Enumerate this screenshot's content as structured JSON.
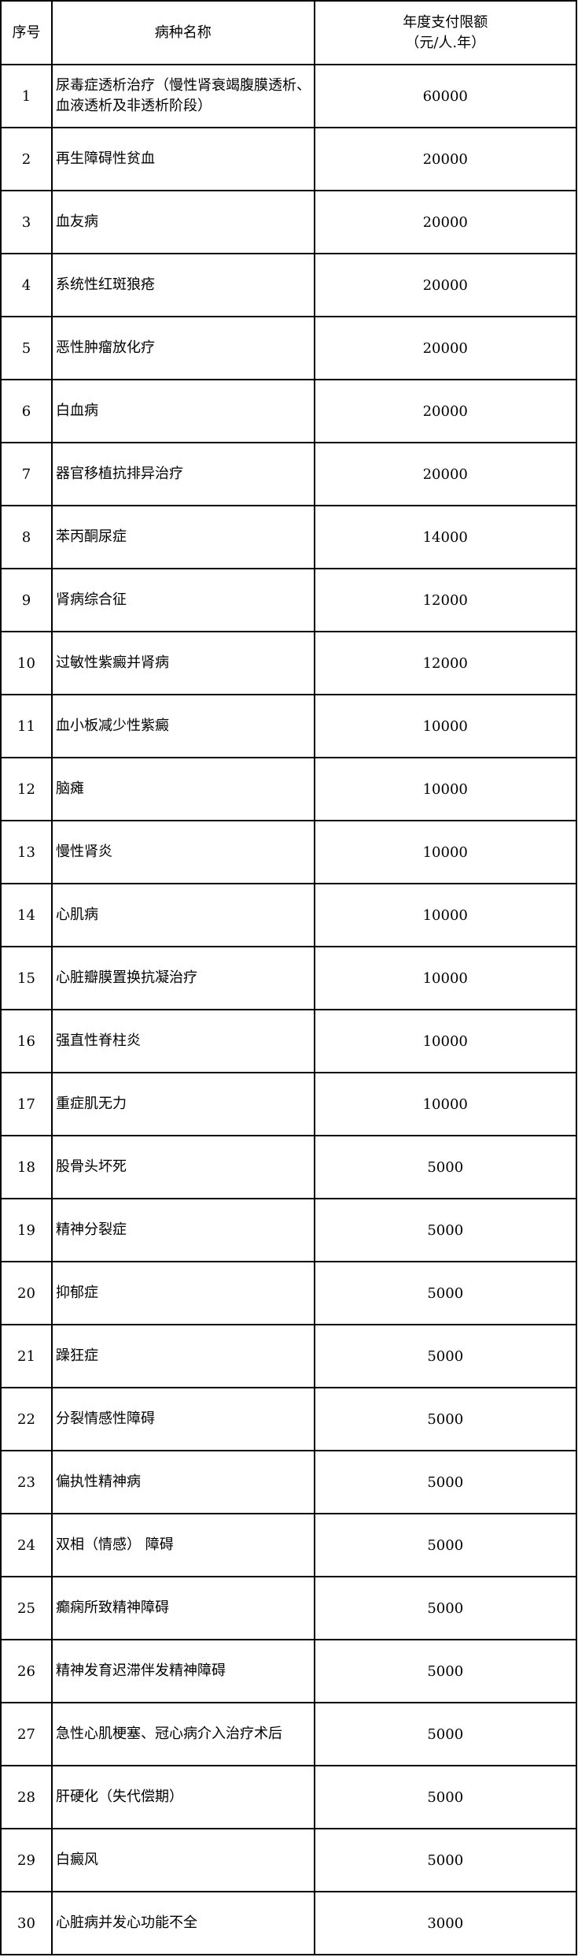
{
  "header": {
    "index": "序号",
    "disease_name": "病种名称",
    "limit_line1": "年度支付限额",
    "limit_line2": "（元/人.年）"
  },
  "rows": [
    {
      "no": "1",
      "name": "尿毒症透析治疗（慢性肾衰竭腹膜透析、血液透析及非透析阶段）",
      "limit": "60000"
    },
    {
      "no": "2",
      "name": "再生障碍性贫血",
      "limit": "20000"
    },
    {
      "no": "3",
      "name": "血友病",
      "limit": "20000"
    },
    {
      "no": "4",
      "name": "系统性红斑狼疮",
      "limit": "20000"
    },
    {
      "no": "5",
      "name": "恶性肿瘤放化疗",
      "limit": "20000"
    },
    {
      "no": "6",
      "name": "白血病",
      "limit": "20000"
    },
    {
      "no": "7",
      "name": "器官移植抗排异治疗",
      "limit": "20000"
    },
    {
      "no": "8",
      "name": "苯丙酮尿症",
      "limit": "14000"
    },
    {
      "no": "9",
      "name": "肾病综合征",
      "limit": "12000"
    },
    {
      "no": "10",
      "name": "过敏性紫癜并肾病",
      "limit": "12000"
    },
    {
      "no": "11",
      "name": "血小板减少性紫癜",
      "limit": "10000"
    },
    {
      "no": "12",
      "name": "脑瘫",
      "limit": "10000"
    },
    {
      "no": "13",
      "name": "慢性肾炎",
      "limit": "10000"
    },
    {
      "no": "14",
      "name": "心肌病",
      "limit": "10000"
    },
    {
      "no": "15",
      "name": "心脏瓣膜置换抗凝治疗",
      "limit": "10000"
    },
    {
      "no": "16",
      "name": "强直性脊柱炎",
      "limit": "10000"
    },
    {
      "no": "17",
      "name": "重症肌无力",
      "limit": "10000"
    },
    {
      "no": "18",
      "name": "股骨头坏死",
      "limit": "5000"
    },
    {
      "no": "19",
      "name": "精神分裂症",
      "limit": "5000"
    },
    {
      "no": "20",
      "name": "抑郁症",
      "limit": "5000"
    },
    {
      "no": "21",
      "name": "躁狂症",
      "limit": "5000"
    },
    {
      "no": "22",
      "name": "分裂情感性障碍",
      "limit": "5000"
    },
    {
      "no": "23",
      "name": "偏执性精神病",
      "limit": "5000"
    },
    {
      "no": "24",
      "name": "双相（情感） 障碍",
      "limit": "5000"
    },
    {
      "no": "25",
      "name": "癫痫所致精神障碍",
      "limit": "5000"
    },
    {
      "no": "26",
      "name": "精神发育迟滞伴发精神障碍",
      "limit": "5000"
    },
    {
      "no": "27",
      "name": "急性心肌梗塞、冠心病介入治疗术后",
      "limit": "5000"
    },
    {
      "no": "28",
      "name": "肝硬化（失代偿期）",
      "limit": "5000"
    },
    {
      "no": "29",
      "name": "白癜风",
      "limit": "5000"
    },
    {
      "no": "30",
      "name": "心脏病并发心功能不全",
      "limit": "3000"
    }
  ]
}
